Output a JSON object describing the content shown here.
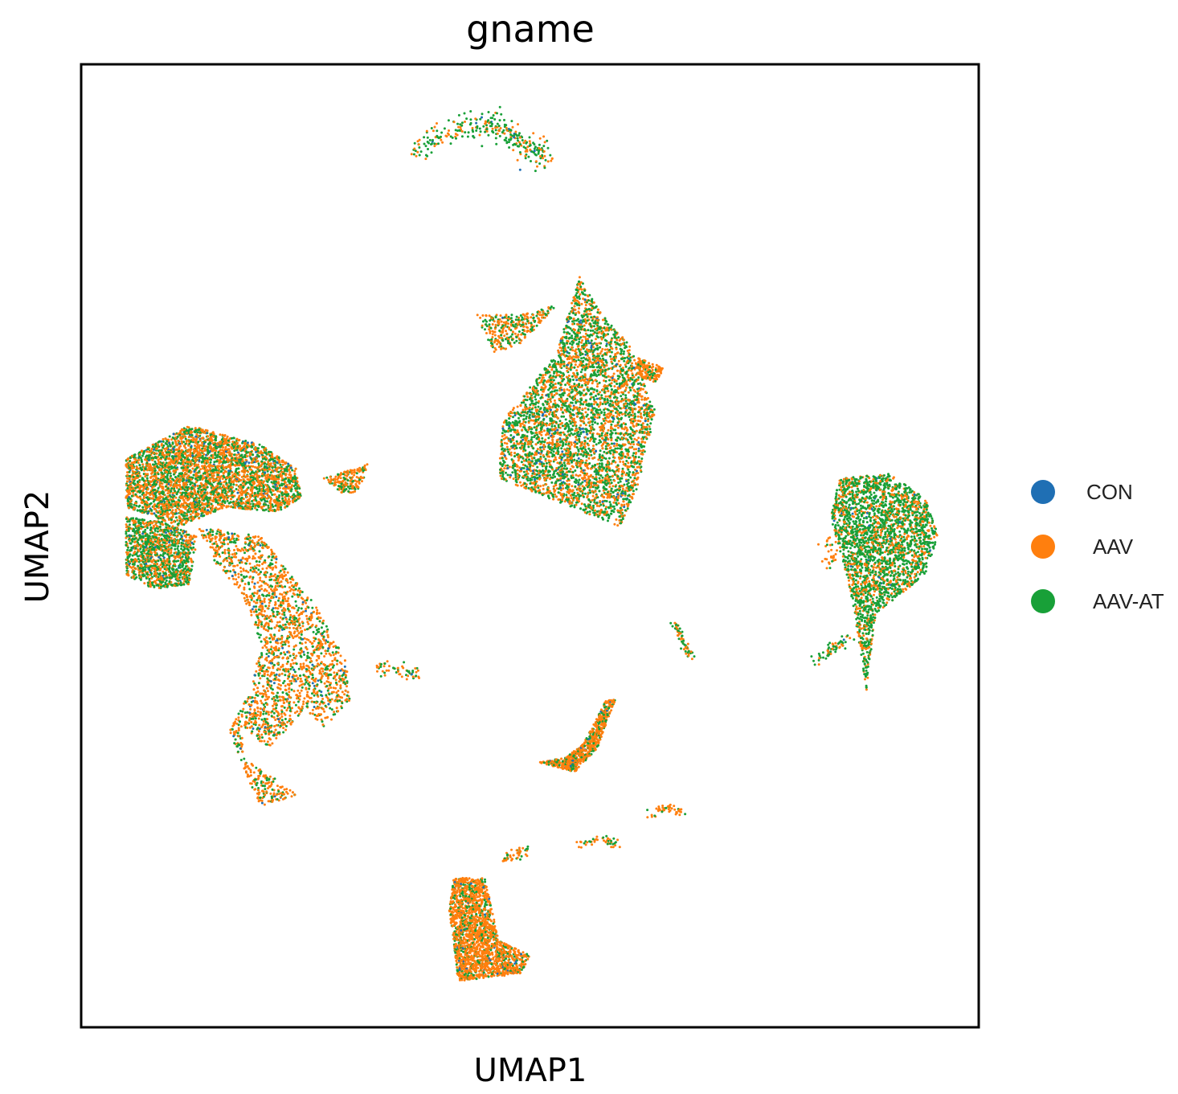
{
  "chart_data": {
    "type": "scatter",
    "title": "gname",
    "xlabel": "UMAP1",
    "ylabel": "UMAP2",
    "ticks": "none",
    "grid": false,
    "legend_placement": "right",
    "series": [
      {
        "name": "CON",
        "color": "#1f6fb4"
      },
      {
        "name": "AAV",
        "color": "#ff7f0e"
      },
      {
        "name": "AAV-AT",
        "color": "#18a038"
      }
    ],
    "xlim": [
      0,
      10
    ],
    "ylim": [
      0,
      10
    ],
    "clusters": [
      {
        "id": "top-arc",
        "points": [
          [
            3.7,
            9.1
          ],
          [
            4.2,
            9.3
          ],
          [
            4.6,
            9.4
          ],
          [
            4.9,
            9.2
          ],
          [
            5.2,
            9.0
          ]
        ],
        "density": 300,
        "spread": 0.07,
        "mix": [
          0.03,
          0.35,
          0.62
        ]
      },
      {
        "id": "center-large",
        "polygon": [
          [
            5.55,
            7.8
          ],
          [
            5.3,
            7.0
          ],
          [
            4.7,
            6.3
          ],
          [
            4.65,
            5.7
          ],
          [
            5.2,
            5.5
          ],
          [
            6.0,
            5.2
          ],
          [
            6.2,
            5.6
          ],
          [
            6.4,
            6.4
          ],
          [
            6.1,
            7.1
          ],
          [
            5.8,
            7.4
          ]
        ],
        "density": 4500,
        "mix": [
          0.03,
          0.45,
          0.52
        ]
      },
      {
        "id": "center-left-arm",
        "polygon": [
          [
            4.4,
            7.4
          ],
          [
            4.9,
            7.4
          ],
          [
            5.3,
            7.5
          ],
          [
            4.9,
            7.1
          ],
          [
            4.6,
            7.0
          ],
          [
            4.5,
            7.2
          ]
        ],
        "density": 300,
        "mix": [
          0.01,
          0.6,
          0.39
        ]
      },
      {
        "id": "center-right-blob",
        "polygon": [
          [
            6.2,
            6.95
          ],
          [
            6.5,
            6.85
          ],
          [
            6.4,
            6.7
          ],
          [
            6.2,
            6.75
          ]
        ],
        "density": 150,
        "mix": [
          0.01,
          0.8,
          0.19
        ]
      },
      {
        "id": "left-top",
        "polygon": [
          [
            0.5,
            5.9
          ],
          [
            1.2,
            6.25
          ],
          [
            2.0,
            6.05
          ],
          [
            2.4,
            5.8
          ],
          [
            2.45,
            5.5
          ],
          [
            2.2,
            5.35
          ],
          [
            1.6,
            5.4
          ],
          [
            1.1,
            5.2
          ],
          [
            0.5,
            5.4
          ]
        ],
        "density": 4200,
        "mix": [
          0.03,
          0.55,
          0.42
        ]
      },
      {
        "id": "left-lobe",
        "polygon": [
          [
            0.5,
            5.3
          ],
          [
            0.9,
            5.25
          ],
          [
            1.3,
            5.1
          ],
          [
            1.2,
            4.6
          ],
          [
            0.8,
            4.55
          ],
          [
            0.5,
            4.7
          ]
        ],
        "density": 1200,
        "mix": [
          0.03,
          0.4,
          0.57
        ]
      },
      {
        "id": "left-arm",
        "polygon": [
          [
            1.3,
            5.2
          ],
          [
            2.0,
            5.1
          ],
          [
            2.6,
            4.4
          ],
          [
            2.95,
            3.8
          ],
          [
            3.0,
            3.4
          ],
          [
            2.7,
            3.1
          ],
          [
            2.5,
            3.3
          ],
          [
            2.1,
            2.9
          ],
          [
            1.8,
            3.1
          ],
          [
            1.8,
            2.8
          ],
          [
            2.3,
            2.5
          ],
          [
            2.4,
            2.4
          ],
          [
            2.0,
            2.3
          ],
          [
            1.8,
            2.7
          ],
          [
            1.65,
            3.1
          ],
          [
            1.9,
            3.5
          ],
          [
            2.0,
            4.0
          ],
          [
            1.8,
            4.5
          ],
          [
            1.5,
            4.8
          ]
        ],
        "density": 2400,
        "mix": [
          0.04,
          0.65,
          0.31
        ]
      },
      {
        "id": "left-small",
        "polygon": [
          [
            2.7,
            5.7
          ],
          [
            3.2,
            5.85
          ],
          [
            3.1,
            5.55
          ],
          [
            2.9,
            5.55
          ]
        ],
        "density": 180,
        "mix": [
          0.01,
          0.7,
          0.29
        ]
      },
      {
        "id": "small-left-center",
        "points": [
          [
            3.3,
            3.73
          ],
          [
            3.55,
            3.7
          ],
          [
            3.75,
            3.65
          ]
        ],
        "density": 60,
        "spread": 0.04,
        "mix": [
          0.01,
          0.6,
          0.39
        ]
      },
      {
        "id": "right-large",
        "polygon": [
          [
            8.45,
            5.7
          ],
          [
            9.0,
            5.75
          ],
          [
            9.4,
            5.5
          ],
          [
            9.55,
            5.1
          ],
          [
            9.4,
            4.7
          ],
          [
            9.0,
            4.4
          ],
          [
            8.85,
            4.3
          ],
          [
            8.75,
            3.5
          ],
          [
            8.6,
            4.4
          ],
          [
            8.5,
            4.8
          ],
          [
            8.35,
            5.3
          ]
        ],
        "density": 2800,
        "mix": [
          0.01,
          0.3,
          0.69
        ]
      },
      {
        "id": "right-thread",
        "points": [
          [
            8.2,
            3.8
          ],
          [
            8.4,
            3.95
          ],
          [
            8.55,
            4.05
          ]
        ],
        "density": 60,
        "spread": 0.03,
        "mix": [
          0.05,
          0.3,
          0.65
        ]
      },
      {
        "id": "right-dots",
        "points": [
          [
            8.3,
            5.05
          ],
          [
            8.35,
            4.8
          ]
        ],
        "density": 30,
        "spread": 0.05,
        "mix": [
          0.0,
          0.8,
          0.2
        ]
      },
      {
        "id": "center-line",
        "points": [
          [
            6.6,
            4.2
          ],
          [
            6.7,
            4.0
          ],
          [
            6.8,
            3.85
          ]
        ],
        "density": 60,
        "spread": 0.02,
        "mix": [
          0.0,
          0.5,
          0.5
        ]
      },
      {
        "id": "crescent",
        "polygon": [
          [
            5.1,
            2.75
          ],
          [
            5.5,
            2.65
          ],
          [
            5.75,
            2.9
          ],
          [
            5.95,
            3.4
          ],
          [
            5.85,
            3.4
          ],
          [
            5.6,
            2.95
          ],
          [
            5.4,
            2.8
          ]
        ],
        "density": 650,
        "mix": [
          0.01,
          0.75,
          0.24
        ]
      },
      {
        "id": "bottom-thread-1",
        "points": [
          [
            6.3,
            2.2
          ],
          [
            6.5,
            2.28
          ],
          [
            6.7,
            2.25
          ]
        ],
        "density": 45,
        "spread": 0.025,
        "mix": [
          0.0,
          0.7,
          0.3
        ]
      },
      {
        "id": "bottom-thread-2",
        "points": [
          [
            5.5,
            1.9
          ],
          [
            5.8,
            1.95
          ],
          [
            6.0,
            1.9
          ]
        ],
        "density": 45,
        "spread": 0.025,
        "mix": [
          0.0,
          0.7,
          0.3
        ]
      },
      {
        "id": "bottom-thread-3",
        "points": [
          [
            4.7,
            1.75
          ],
          [
            4.85,
            1.8
          ],
          [
            5.0,
            1.85
          ]
        ],
        "density": 45,
        "spread": 0.025,
        "mix": [
          0.0,
          0.7,
          0.3
        ]
      },
      {
        "id": "bottom-block",
        "polygon": [
          [
            4.15,
            1.55
          ],
          [
            4.5,
            1.55
          ],
          [
            4.65,
            0.9
          ],
          [
            5.0,
            0.75
          ],
          [
            4.9,
            0.55
          ],
          [
            4.2,
            0.48
          ],
          [
            4.15,
            0.9
          ],
          [
            4.1,
            1.2
          ]
        ],
        "density": 1900,
        "mix": [
          0.02,
          0.8,
          0.18
        ]
      }
    ]
  }
}
